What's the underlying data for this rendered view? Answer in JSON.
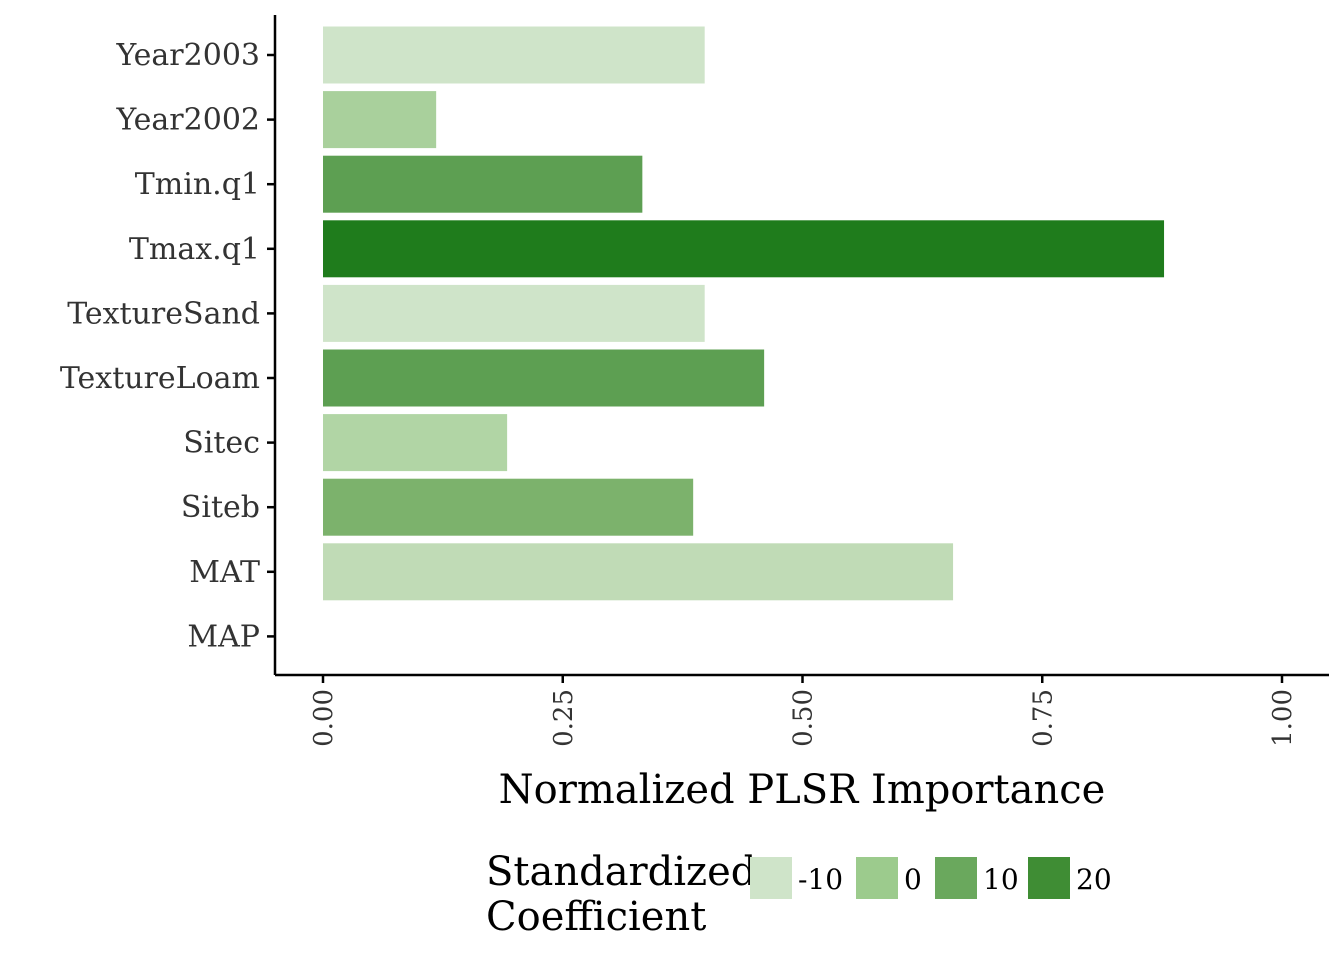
{
  "chart_data": {
    "type": "bar",
    "orientation": "horizontal",
    "xlabel": "Normalized PLSR Importance",
    "ylabel": "",
    "xlim": [
      0,
      1
    ],
    "x_ticks": [
      "0.00",
      "0.25",
      "0.50",
      "0.75",
      "1.00"
    ],
    "x_tick_values": [
      0,
      0.25,
      0.5,
      0.75,
      1.0
    ],
    "grid": false,
    "categories": [
      "Year2003",
      "Year2002",
      "Tmin.q1",
      "Tmax.q1",
      "TextureSand",
      "TextureLoam",
      "Sitec",
      "Siteb",
      "MAT",
      "MAP"
    ],
    "values": [
      0.398,
      0.118,
      0.333,
      0.877,
      0.398,
      0.46,
      0.192,
      0.386,
      0.657,
      0.0
    ],
    "fill_values": [
      -13,
      -4,
      11,
      23,
      -13,
      11,
      -8,
      6,
      -10,
      0
    ],
    "fill_colors": [
      "#cfe4c9",
      "#a9d09c",
      "#5d9f52",
      "#1f7c1c",
      "#cfe4c9",
      "#5d9f52",
      "#b1d5a5",
      "#7cb26c",
      "#c0dbb6",
      "#9ccb8d"
    ],
    "legend": {
      "title_lines": [
        "Standardized",
        "Coefficient"
      ],
      "placement": "bottom",
      "entries": [
        {
          "label": "-10",
          "color": "#cfe4c9"
        },
        {
          "label": "0",
          "color": "#9ccb8d"
        },
        {
          "label": "10",
          "color": "#6aa85d"
        },
        {
          "label": "20",
          "color": "#3f8d34"
        }
      ]
    }
  }
}
